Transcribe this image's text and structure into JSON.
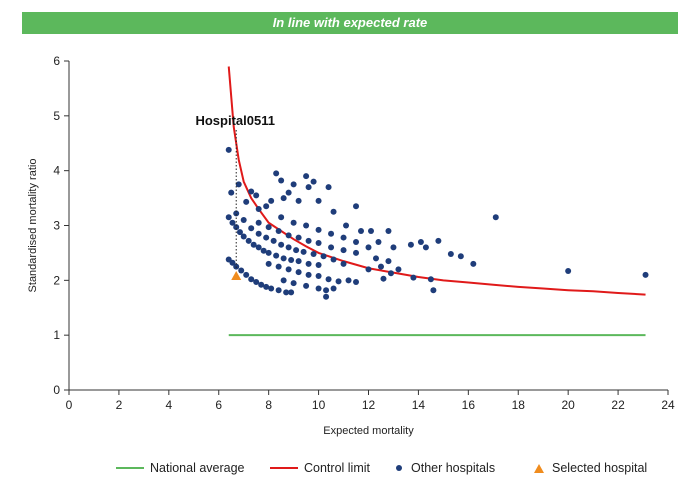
{
  "banner": {
    "text": "In line with expected rate",
    "color": "#5cb85c"
  },
  "chart_data": {
    "type": "scatter",
    "xlabel": "Expected mortality",
    "ylabel": "Standardised mortality ratio",
    "xlim": [
      0,
      24
    ],
    "ylim": [
      0,
      6
    ],
    "xticks": [
      "0",
      "2",
      "4",
      "6",
      "8",
      "10",
      "12",
      "14",
      "16",
      "18",
      "20",
      "22",
      "24"
    ],
    "yticks": [
      "0",
      "1",
      "2",
      "3",
      "4",
      "5",
      "6"
    ],
    "grid": false,
    "legend_position": "bottom",
    "annotation": {
      "text": "Hospital0511",
      "x": 6.7,
      "y": 4.85
    },
    "national_average": {
      "name": "National average",
      "color": "#5cb85c",
      "x": [
        6.4,
        23.1
      ],
      "y": [
        1,
        1
      ]
    },
    "control_limit": {
      "name": "Control limit",
      "color": "#e01a1a",
      "x": [
        6.4,
        6.6,
        6.8,
        7.0,
        7.3,
        7.6,
        8.0,
        8.5,
        9.0,
        9.5,
        10.0,
        11.0,
        12.0,
        13.0,
        14.0,
        15.0,
        16.0,
        17.0,
        18.0,
        19.0,
        20.0,
        21.0,
        22.0,
        23.1
      ],
      "y": [
        5.9,
        4.8,
        4.2,
        3.8,
        3.5,
        3.3,
        3.05,
        2.9,
        2.75,
        2.62,
        2.5,
        2.35,
        2.22,
        2.14,
        2.06,
        2.0,
        1.96,
        1.92,
        1.88,
        1.85,
        1.82,
        1.8,
        1.77,
        1.74
      ]
    },
    "other_hospitals": {
      "name": "Other hospitals",
      "color": "#1f3d7a",
      "points": [
        [
          6.4,
          4.38
        ],
        [
          6.5,
          3.6
        ],
        [
          6.8,
          3.75
        ],
        [
          6.7,
          3.22
        ],
        [
          7.1,
          3.43
        ],
        [
          7.3,
          3.62
        ],
        [
          7.5,
          3.55
        ],
        [
          7.6,
          3.3
        ],
        [
          7.9,
          3.35
        ],
        [
          8.1,
          3.45
        ],
        [
          8.3,
          3.95
        ],
        [
          8.5,
          3.82
        ],
        [
          8.6,
          3.5
        ],
        [
          8.8,
          3.6
        ],
        [
          9.0,
          3.75
        ],
        [
          9.2,
          3.45
        ],
        [
          9.5,
          3.9
        ],
        [
          9.6,
          3.7
        ],
        [
          9.8,
          3.8
        ],
        [
          10.0,
          3.45
        ],
        [
          10.4,
          3.7
        ],
        [
          10.6,
          3.25
        ],
        [
          11.1,
          3.0
        ],
        [
          11.5,
          3.35
        ],
        [
          11.7,
          2.9
        ],
        [
          12.1,
          2.9
        ],
        [
          12.4,
          2.7
        ],
        [
          12.8,
          2.9
        ],
        [
          13.0,
          2.6
        ],
        [
          13.7,
          2.65
        ],
        [
          14.1,
          2.7
        ],
        [
          14.3,
          2.6
        ],
        [
          14.8,
          2.72
        ],
        [
          15.3,
          2.48
        ],
        [
          15.7,
          2.44
        ],
        [
          16.2,
          2.3
        ],
        [
          17.1,
          3.15
        ],
        [
          20.0,
          2.17
        ],
        [
          23.1,
          2.1
        ],
        [
          6.4,
          3.15
        ],
        [
          6.55,
          3.05
        ],
        [
          6.7,
          2.97
        ],
        [
          6.85,
          2.88
        ],
        [
          7.0,
          2.8
        ],
        [
          7.2,
          2.72
        ],
        [
          7.4,
          2.65
        ],
        [
          7.6,
          2.6
        ],
        [
          7.8,
          2.54
        ],
        [
          8.0,
          2.5
        ],
        [
          8.3,
          2.45
        ],
        [
          8.6,
          2.4
        ],
        [
          8.9,
          2.37
        ],
        [
          9.2,
          2.35
        ],
        [
          9.6,
          2.3
        ],
        [
          10.0,
          2.28
        ],
        [
          6.4,
          2.38
        ],
        [
          6.55,
          2.32
        ],
        [
          6.7,
          2.25
        ],
        [
          6.9,
          2.18
        ],
        [
          7.1,
          2.1
        ],
        [
          7.3,
          2.02
        ],
        [
          7.5,
          1.97
        ],
        [
          7.7,
          1.92
        ],
        [
          7.9,
          1.88
        ],
        [
          8.1,
          1.85
        ],
        [
          8.4,
          1.82
        ],
        [
          8.7,
          1.78
        ],
        [
          8.9,
          1.78
        ],
        [
          7.0,
          3.1
        ],
        [
          7.3,
          2.95
        ],
        [
          7.6,
          2.85
        ],
        [
          7.9,
          2.78
        ],
        [
          8.2,
          2.72
        ],
        [
          8.5,
          2.65
        ],
        [
          8.8,
          2.6
        ],
        [
          9.1,
          2.55
        ],
        [
          9.4,
          2.52
        ],
        [
          9.8,
          2.48
        ],
        [
          10.2,
          2.44
        ],
        [
          10.6,
          2.38
        ],
        [
          7.6,
          3.05
        ],
        [
          8.0,
          2.97
        ],
        [
          8.4,
          2.9
        ],
        [
          8.8,
          2.82
        ],
        [
          9.2,
          2.78
        ],
        [
          9.6,
          2.72
        ],
        [
          10.0,
          2.68
        ],
        [
          10.5,
          2.6
        ],
        [
          11.0,
          2.55
        ],
        [
          11.5,
          2.5
        ],
        [
          8.5,
          3.15
        ],
        [
          9.0,
          3.05
        ],
        [
          9.5,
          3.0
        ],
        [
          10.0,
          2.92
        ],
        [
          10.5,
          2.85
        ],
        [
          11.0,
          2.78
        ],
        [
          11.5,
          2.7
        ],
        [
          12.0,
          2.6
        ],
        [
          8.0,
          2.3
        ],
        [
          8.4,
          2.25
        ],
        [
          8.8,
          2.2
        ],
        [
          9.2,
          2.15
        ],
        [
          9.6,
          2.1
        ],
        [
          10.0,
          2.08
        ],
        [
          10.4,
          2.02
        ],
        [
          10.8,
          1.98
        ],
        [
          11.2,
          2.0
        ],
        [
          11.5,
          1.97
        ],
        [
          8.6,
          2.0
        ],
        [
          9.0,
          1.95
        ],
        [
          9.5,
          1.9
        ],
        [
          10.0,
          1.85
        ],
        [
          10.3,
          1.82
        ],
        [
          10.3,
          1.7
        ],
        [
          10.6,
          1.85
        ],
        [
          12.0,
          2.2
        ],
        [
          12.5,
          2.25
        ],
        [
          12.6,
          2.03
        ],
        [
          12.9,
          2.13
        ],
        [
          13.2,
          2.2
        ],
        [
          13.8,
          2.05
        ],
        [
          14.5,
          2.02
        ],
        [
          14.6,
          1.82
        ],
        [
          11.0,
          2.3
        ],
        [
          12.3,
          2.4
        ],
        [
          12.8,
          2.35
        ]
      ]
    },
    "selected_hospital": {
      "name": "Selected hospital",
      "color": "#f08c1e",
      "x": 6.7,
      "y": 2.08
    }
  },
  "legend": {
    "national_average": "National average",
    "control_limit": "Control limit",
    "other_hospitals": "Other hospitals",
    "selected_hospital": "Selected hospital"
  }
}
